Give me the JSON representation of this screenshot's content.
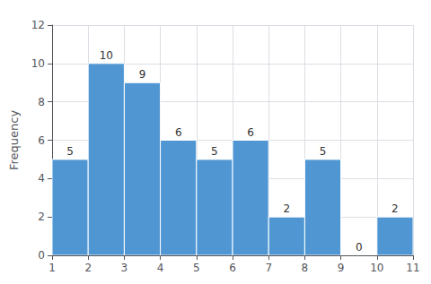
{
  "chart_data": {
    "type": "histogram",
    "bins": [
      1,
      2,
      3,
      4,
      5,
      6,
      7,
      8,
      9,
      10,
      11
    ],
    "values": [
      5,
      10,
      9,
      6,
      5,
      6,
      2,
      5,
      0,
      2
    ],
    "color": "#4f96d3",
    "ylabel": "Frequency",
    "xlim": [
      1,
      11
    ],
    "xticks": [
      1,
      2,
      3,
      4,
      5,
      6,
      7,
      8,
      9,
      10,
      11
    ],
    "ylim": [
      0,
      12
    ],
    "yticks": [
      0,
      2,
      4,
      6,
      8,
      10,
      12
    ],
    "data_labels": true,
    "grid": true
  }
}
